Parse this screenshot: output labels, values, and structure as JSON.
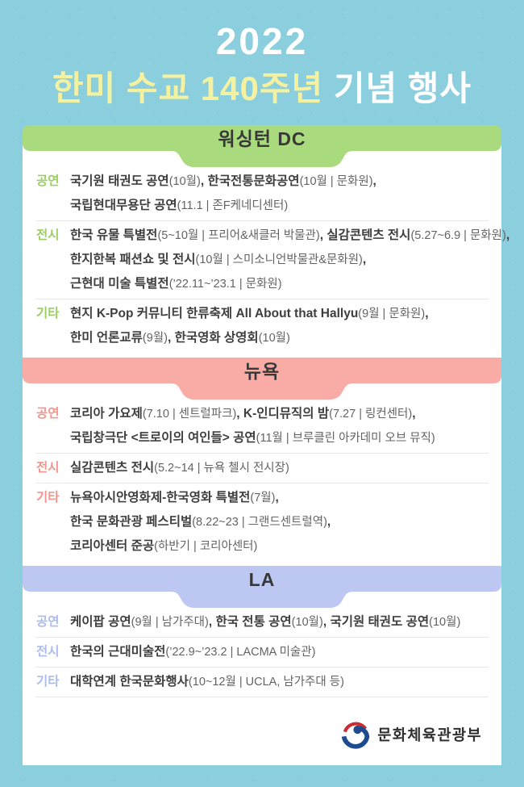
{
  "page": {
    "background_color": "#8bcfdf"
  },
  "title": {
    "year": "2022",
    "line2_highlight": "한미 수교 140주년",
    "line2_rest": " 기념 행사",
    "year_color": "#ffffff",
    "highlight_color": "#f4f1a0"
  },
  "sections": [
    {
      "id": "washington-dc",
      "name": "워싱턴 DC",
      "bar_color": "#a9da7e",
      "label_color": "#9ccf63",
      "rounded_top": true,
      "rows": [
        {
          "label": "공연",
          "lines": [
            [
              [
                "국기원 태권도 공연",
                "b"
              ],
              [
                "(10월)",
                "r"
              ],
              [
                ", ",
                "b"
              ],
              [
                "한국전통문화공연",
                "b"
              ],
              [
                "(10월 | 문화원)",
                "r"
              ],
              [
                ",",
                "b"
              ]
            ],
            [
              [
                "국립현대무용단 공연",
                "b"
              ],
              [
                "(11.1 | 존F케네디센터)",
                "r"
              ]
            ]
          ]
        },
        {
          "label": "전시",
          "lines": [
            [
              [
                "한국 유물 특별전",
                "b"
              ],
              [
                "(5~10월 | 프리어&새클러 박물관)",
                "r"
              ],
              [
                ", ",
                "b"
              ],
              [
                "실감콘텐츠 전시",
                "b"
              ],
              [
                "(5.27~6.9 | 문화원)",
                "r"
              ],
              [
                ",",
                "b"
              ]
            ],
            [
              [
                "한지한복 패션쇼 및 전시",
                "b"
              ],
              [
                "(10월 | 스미소니언박물관&문화원)",
                "r"
              ],
              [
                ",",
                "b"
              ]
            ],
            [
              [
                "근현대 미술 특별전",
                "b"
              ],
              [
                "(’22.11~’23.1 | 문화원)",
                "r"
              ]
            ]
          ]
        },
        {
          "label": "기타",
          "lines": [
            [
              [
                "현지 K-Pop 커뮤니티 한류축제 All About that Hallyu",
                "b"
              ],
              [
                "(9월 | 문화원)",
                "r"
              ],
              [
                ",",
                "b"
              ]
            ],
            [
              [
                "한미 언론교류",
                "b"
              ],
              [
                "(9월)",
                "r"
              ],
              [
                ", ",
                "b"
              ],
              [
                "한국영화 상영회",
                "b"
              ],
              [
                "(10월)",
                "r"
              ]
            ]
          ]
        }
      ]
    },
    {
      "id": "new-york",
      "name": "뉴욕",
      "bar_color": "#f9aca6",
      "label_color": "#f2968f",
      "rounded_top": false,
      "rows": [
        {
          "label": "공연",
          "lines": [
            [
              [
                "코리아 가요제",
                "b"
              ],
              [
                "(7.10 | 센트럴파크)",
                "r"
              ],
              [
                ", ",
                "b"
              ],
              [
                "K-인디뮤직의 밤",
                "b"
              ],
              [
                "(7.27 | 링컨센터)",
                "r"
              ],
              [
                ",",
                "b"
              ]
            ],
            [
              [
                "국립창극단 <트로이의 여인들> 공연",
                "b"
              ],
              [
                "(11월 | 브루클린 아카데미 오브 뮤직)",
                "r"
              ]
            ]
          ]
        },
        {
          "label": "전시",
          "lines": [
            [
              [
                "실감콘텐츠 전시",
                "b"
              ],
              [
                "(5.2~14 | 뉴욕 첼시 전시장)",
                "r"
              ]
            ]
          ]
        },
        {
          "label": "기타",
          "lines": [
            [
              [
                "뉴욕아시안영화제-한국영화 특별전",
                "b"
              ],
              [
                "(7월)",
                "r"
              ],
              [
                ",",
                "b"
              ]
            ],
            [
              [
                "한국 문화관광 페스티벌",
                "b"
              ],
              [
                "(8.22~23 | 그랜드센트럴역)",
                "r"
              ],
              [
                ",",
                "b"
              ]
            ],
            [
              [
                "코리아센터 준공",
                "b"
              ],
              [
                "(하반기 | 코리아센터)",
                "r"
              ]
            ]
          ]
        }
      ]
    },
    {
      "id": "la",
      "name": "LA",
      "bar_color": "#bdc8f2",
      "label_color": "#adbcee",
      "rounded_top": false,
      "trailing_divider": true,
      "rows": [
        {
          "label": "공연",
          "lines": [
            [
              [
                "케이팝 공연",
                "b"
              ],
              [
                "(9월 | 남가주대)",
                "r"
              ],
              [
                ", ",
                "b"
              ],
              [
                "한국 전통 공연",
                "b"
              ],
              [
                "(10월)",
                "r"
              ],
              [
                ", ",
                "b"
              ],
              [
                "국기원 태권도 공연",
                "b"
              ],
              [
                "(10월)",
                "r"
              ]
            ]
          ]
        },
        {
          "label": "전시",
          "lines": [
            [
              [
                "한국의 근대미술전",
                "b"
              ],
              [
                "(’22.9~’23.2 | LACMA 미술관)",
                "r"
              ]
            ]
          ]
        },
        {
          "label": "기타",
          "lines": [
            [
              [
                "대학연계 한국문화행사",
                "b"
              ],
              [
                "(10~12월 | UCLA, 남가주대 등)",
                "r"
              ]
            ]
          ]
        }
      ]
    }
  ],
  "footer": {
    "ministry": "문화체육관광부",
    "emblem_red": "#cc2b32",
    "emblem_blue": "#1e4b8e"
  }
}
